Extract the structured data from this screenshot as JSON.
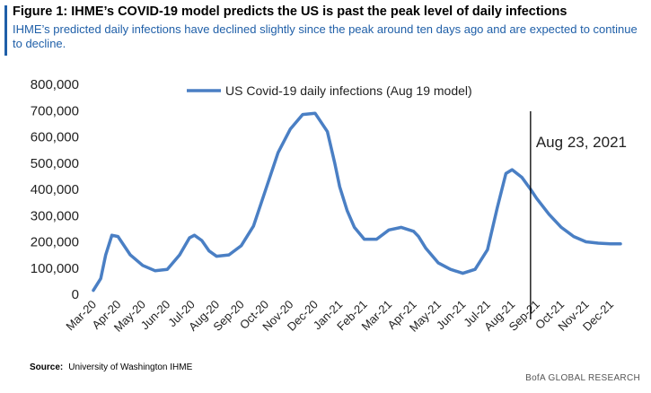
{
  "header": {
    "title": "Figure 1: IHME’s COVID-19 model predicts the US is past the peak level of daily infections",
    "subtitle": "IHME’s predicted daily infections have declined slightly since the peak around ten days ago and are expected to continue to decline."
  },
  "footer": {
    "source_label": "Source:",
    "source_text": "University of Washington IHME",
    "brand": "BofA GLOBAL RESEARCH"
  },
  "colors": {
    "accent": "#1f5fa8",
    "line": "#4a7fc4"
  },
  "chart_data": {
    "type": "line",
    "title": "",
    "xlabel": "",
    "ylabel": "",
    "ylim": [
      0,
      800000
    ],
    "yticks": [
      0,
      100000,
      200000,
      300000,
      400000,
      500000,
      600000,
      700000,
      800000
    ],
    "ytick_labels": [
      "0",
      "100,000",
      "200,000",
      "300,000",
      "400,000",
      "500,000",
      "600,000",
      "700,000",
      "800,000"
    ],
    "categories": [
      "Mar-20",
      "Apr-20",
      "May-20",
      "Jun-20",
      "Jul-20",
      "Aug-20",
      "Sep-20",
      "Oct-20",
      "Nov-20",
      "Dec-20",
      "Jan-21",
      "Feb-21",
      "Mar-21",
      "Apr-21",
      "May-21",
      "Jun-21",
      "Jul-21",
      "Aug-21",
      "Sep-21",
      "Oct-21",
      "Nov-21",
      "Dec-21"
    ],
    "grid": false,
    "legend": "top-center",
    "series": [
      {
        "name": "US Covid-19 daily infections (Aug 19 model)",
        "x": [
          0,
          0.3,
          0.5,
          0.75,
          1.0,
          1.5,
          2.0,
          2.5,
          3.0,
          3.5,
          3.9,
          4.1,
          4.4,
          4.7,
          5.0,
          5.5,
          6.0,
          6.5,
          7.0,
          7.5,
          8.0,
          8.5,
          9.0,
          9.5,
          9.8,
          10.0,
          10.3,
          10.6,
          11.0,
          11.5,
          12.0,
          12.5,
          13.0,
          13.2,
          13.5,
          14.0,
          14.5,
          15.0,
          15.5,
          16.0,
          16.4,
          16.75,
          17.0,
          17.4,
          17.75,
          18.0,
          18.5,
          19.0,
          19.5,
          20.0,
          20.5,
          21.0,
          21.4
        ],
        "values": [
          15000,
          60000,
          150000,
          225000,
          220000,
          150000,
          110000,
          90000,
          95000,
          150000,
          215000,
          225000,
          205000,
          165000,
          145000,
          150000,
          185000,
          260000,
          400000,
          540000,
          630000,
          685000,
          690000,
          620000,
          500000,
          410000,
          320000,
          255000,
          210000,
          210000,
          245000,
          255000,
          240000,
          220000,
          175000,
          120000,
          95000,
          80000,
          95000,
          170000,
          330000,
          460000,
          475000,
          445000,
          400000,
          365000,
          305000,
          255000,
          220000,
          200000,
          195000,
          192000,
          192000
        ]
      }
    ],
    "annotations": [
      {
        "x": 17.75,
        "label": "Aug 23, 2021"
      }
    ]
  }
}
